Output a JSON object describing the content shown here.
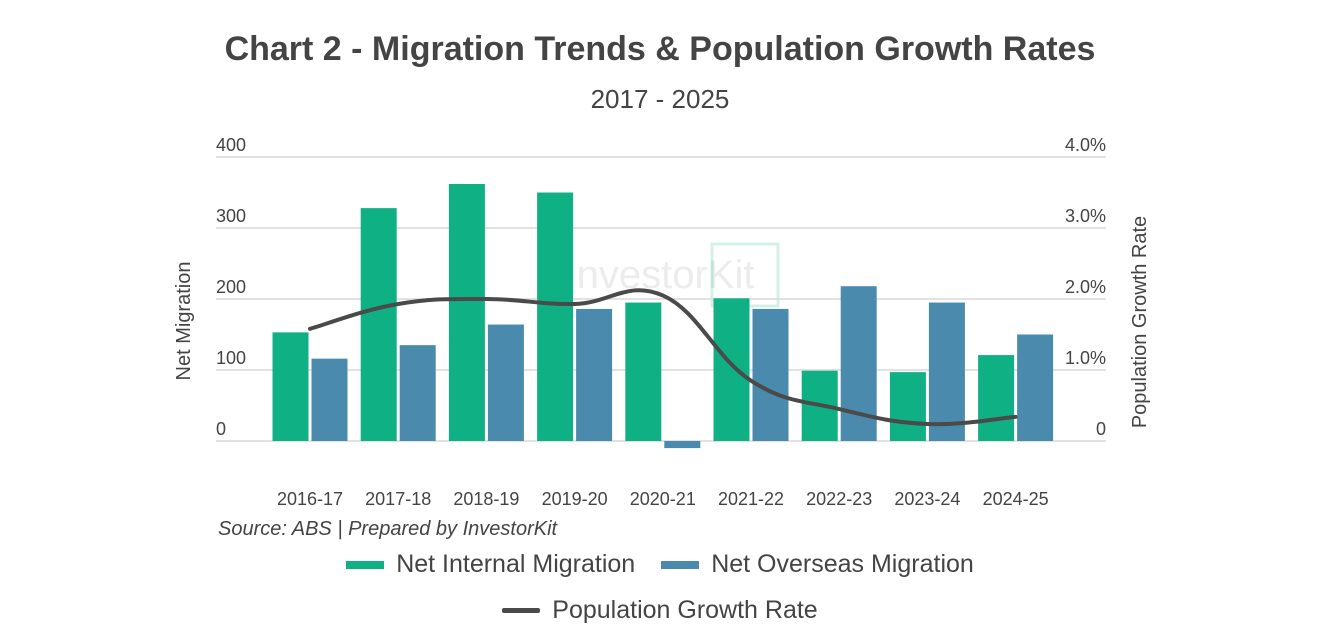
{
  "colors": {
    "internal": "#10b085",
    "overseas": "#4a8bad",
    "line": "#4a4a4a",
    "grid": "#d9d9d9",
    "text": "#444444"
  },
  "chart_data": {
    "type": "bar",
    "title": "Chart 2 - Migration Trends & Population Growth Rates",
    "subtitle": "2017 - 2025",
    "categories": [
      "2016-17",
      "2017-18",
      "2018-19",
      "2019-20",
      "2020-21",
      "2021-22",
      "2022-23",
      "2023-24",
      "2024-25"
    ],
    "series": [
      {
        "name": "Net Internal Migration",
        "type": "bar",
        "axis": "left",
        "values": [
          153,
          328,
          362,
          350,
          195,
          201,
          99,
          97,
          121
        ]
      },
      {
        "name": "Net Overseas Migration",
        "type": "bar",
        "axis": "left",
        "values": [
          116,
          135,
          164,
          186,
          -10,
          186,
          218,
          195,
          150
        ]
      },
      {
        "name": "Population Growth Rate",
        "type": "line",
        "axis": "right",
        "values": [
          1.58,
          1.93,
          2.0,
          1.93,
          2.05,
          0.85,
          0.45,
          0.24,
          0.34
        ]
      }
    ],
    "ylabel": "Net Migration",
    "y2label": "Population Growth Rate",
    "ylim": [
      0,
      400
    ],
    "y2lim": [
      0,
      4.0
    ],
    "yticks": [
      "0",
      "100",
      "200",
      "300",
      "400"
    ],
    "y2ticks": [
      "0",
      "1.0%",
      "2.0%",
      "3.0%",
      "4.0%"
    ],
    "grid": true,
    "legend_position": "bottom"
  },
  "watermark": "InvestorKit",
  "source": "Source: ABS | Prepared by InvestorKit"
}
